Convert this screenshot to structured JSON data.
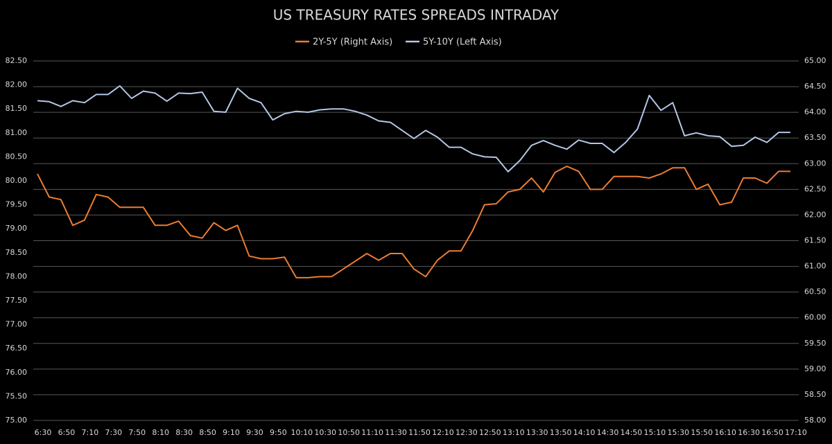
{
  "chart_data": {
    "type": "line",
    "title": "US TREASURY RATES SPREADS INTRADAY",
    "categories": [
      "6:30",
      null,
      "6:50",
      null,
      "7:10",
      null,
      "7:30",
      null,
      "7:50",
      null,
      "8:10",
      null,
      "8:30",
      null,
      "8:50",
      null,
      "9:10",
      null,
      "9:30",
      null,
      "9:50",
      null,
      "10:10",
      null,
      "10:30",
      null,
      "10:50",
      null,
      "11:10",
      null,
      "11:30",
      null,
      "11:50",
      null,
      "12:10",
      null,
      "12:30",
      null,
      "12:50",
      null,
      "13:10",
      null,
      "13:30",
      null,
      "13:50",
      null,
      "14:10",
      null,
      "14:30",
      null,
      "14:50",
      null,
      "15:10",
      null,
      "15:30",
      null,
      "15:50",
      null,
      "16:10",
      null,
      "16:30",
      null,
      "16:50",
      null,
      "17:10"
    ],
    "series": [
      {
        "name": "2Y-5Y (Right Axis)",
        "color": "#ed7d31",
        "axis": "y2",
        "values": [
          62.8,
          62.35,
          62.3,
          61.8,
          61.9,
          62.4,
          62.35,
          62.15,
          62.15,
          62.15,
          61.8,
          61.8,
          61.88,
          61.6,
          61.55,
          61.85,
          61.7,
          61.8,
          61.2,
          61.15,
          61.15,
          61.18,
          60.78,
          60.78,
          60.8,
          60.8,
          60.95,
          61.1,
          61.25,
          61.12,
          61.25,
          61.25,
          60.95,
          60.8,
          61.12,
          61.3,
          61.3,
          61.7,
          62.2,
          62.22,
          62.45,
          62.5,
          62.72,
          62.45,
          62.83,
          62.95,
          62.85,
          62.5,
          62.5,
          62.75,
          62.75,
          62.75,
          62.72,
          62.8,
          62.92,
          62.92,
          62.5,
          62.6,
          62.2,
          62.25,
          62.72,
          62.72,
          62.62,
          62.85,
          62.85
        ]
      },
      {
        "name": "5Y-10Y (Left Axis)",
        "color": "#b4c7e7",
        "axis": "y",
        "values": [
          81.67,
          81.65,
          81.55,
          81.67,
          81.63,
          81.8,
          81.8,
          81.98,
          81.72,
          81.87,
          81.83,
          81.66,
          81.83,
          81.82,
          81.85,
          81.45,
          81.43,
          81.93,
          81.72,
          81.63,
          81.27,
          81.4,
          81.45,
          81.43,
          81.48,
          81.5,
          81.5,
          81.45,
          81.37,
          81.25,
          81.22,
          81.05,
          80.88,
          81.05,
          80.91,
          80.7,
          80.7,
          80.56,
          80.5,
          80.49,
          80.19,
          80.42,
          80.74,
          80.84,
          80.74,
          80.66,
          80.85,
          80.78,
          80.78,
          80.59,
          80.8,
          81.08,
          81.78,
          81.47,
          81.63,
          80.94,
          81.0,
          80.94,
          80.92,
          80.72,
          80.74,
          80.91,
          80.8,
          81.01,
          81.01
        ]
      }
    ],
    "ylim": [
      75,
      82.5
    ],
    "yticks": [
      {
        "value": 75,
        "label": "75.00"
      },
      {
        "value": 75.5,
        "label": "75.50"
      },
      {
        "value": 76,
        "label": "76.00"
      },
      {
        "value": 76.5,
        "label": "76.50"
      },
      {
        "value": 77,
        "label": "77.00"
      },
      {
        "value": 77.5,
        "label": "77.50"
      },
      {
        "value": 78,
        "label": "78.00"
      },
      {
        "value": 78.5,
        "label": "78.50"
      },
      {
        "value": 79,
        "label": "79.00"
      },
      {
        "value": 79.5,
        "label": "79.50"
      },
      {
        "value": 80,
        "label": "80.00"
      },
      {
        "value": 80.5,
        "label": "80.50"
      },
      {
        "value": 81,
        "label": "81.00"
      },
      {
        "value": 81.5,
        "label": "81.50"
      },
      {
        "value": 82,
        "label": "82.00"
      },
      {
        "value": 82.5,
        "label": "82.50"
      }
    ],
    "y2lim": [
      58,
      65
    ],
    "y2ticks": [
      {
        "value": 58,
        "label": "58.00"
      },
      {
        "value": 58.5,
        "label": "58.50"
      },
      {
        "value": 59,
        "label": "59.00"
      },
      {
        "value": 59.5,
        "label": "59.50"
      },
      {
        "value": 60,
        "label": "60.00"
      },
      {
        "value": 60.5,
        "label": "60.50"
      },
      {
        "value": 61,
        "label": "61.00"
      },
      {
        "value": 61.5,
        "label": "61.50"
      },
      {
        "value": 62,
        "label": "62.00"
      },
      {
        "value": 62.5,
        "label": "62.50"
      },
      {
        "value": 63,
        "label": "63.00"
      },
      {
        "value": 63.5,
        "label": "63.50"
      },
      {
        "value": 64,
        "label": "64.00"
      },
      {
        "value": 64.5,
        "label": "64.50"
      },
      {
        "value": 65,
        "label": "65.00"
      }
    ],
    "grid": true,
    "legend": "top"
  }
}
